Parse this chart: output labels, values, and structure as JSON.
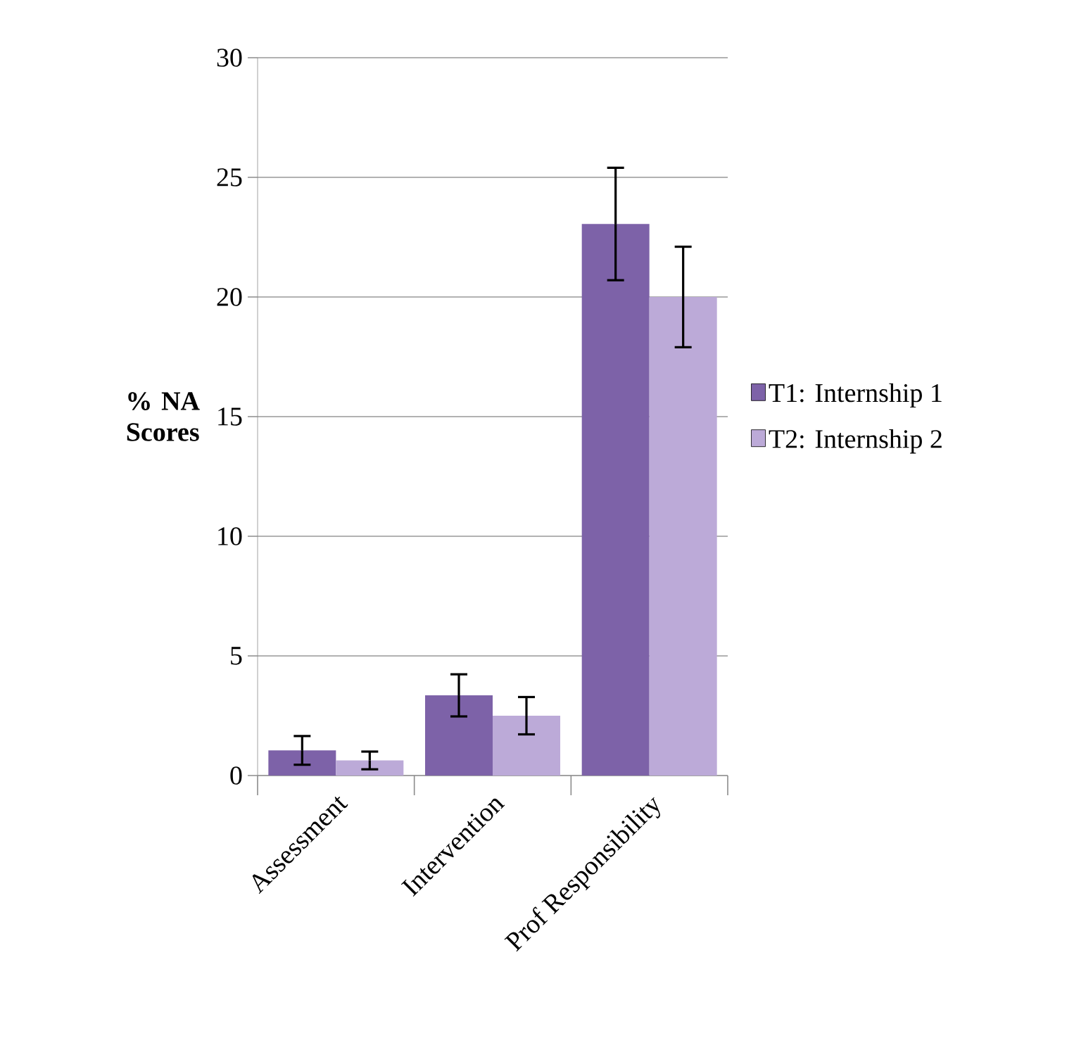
{
  "chart_data": {
    "type": "bar",
    "ylabel": "% NA Scores",
    "categories": [
      "Assessment",
      "Intervention",
      "Prof Responsibility"
    ],
    "series": [
      {
        "name": "T1: Internship 1",
        "color": "#7d62a8",
        "values": [
          1.05,
          3.35,
          23.05
        ],
        "errors": [
          0.6,
          0.88,
          2.35
        ]
      },
      {
        "name": "T2: Internship 2",
        "color": "#bcaad8",
        "values": [
          0.63,
          2.5,
          20.0
        ],
        "errors": [
          0.37,
          0.78,
          2.1
        ]
      }
    ],
    "ylim": [
      0,
      30
    ],
    "yticks": [
      0,
      5,
      10,
      15,
      20,
      25,
      30
    ],
    "grid": "y",
    "legend": "right"
  }
}
